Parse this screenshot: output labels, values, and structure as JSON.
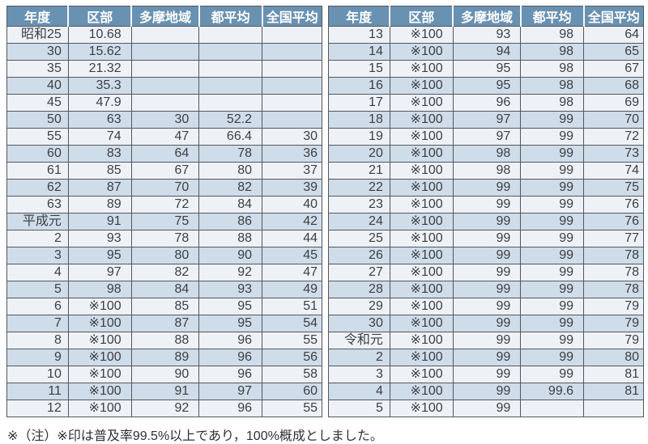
{
  "columns": [
    "年度",
    "区部",
    "多摩地域",
    "都平均",
    "全国平均"
  ],
  "left_table": {
    "rows": [
      [
        "昭和25",
        "10.68",
        "",
        "",
        ""
      ],
      [
        "30",
        "15.62",
        "",
        "",
        ""
      ],
      [
        "35",
        "21.32",
        "",
        "",
        ""
      ],
      [
        "40",
        "35.3",
        "",
        "",
        ""
      ],
      [
        "45",
        "47.9",
        "",
        "",
        ""
      ],
      [
        "50",
        "63",
        "30",
        "52.2",
        ""
      ],
      [
        "55",
        "74",
        "47",
        "66.4",
        "30"
      ],
      [
        "60",
        "83",
        "64",
        "78",
        "36"
      ],
      [
        "61",
        "85",
        "67",
        "80",
        "37"
      ],
      [
        "62",
        "87",
        "70",
        "82",
        "39"
      ],
      [
        "63",
        "89",
        "72",
        "84",
        "40"
      ],
      [
        "平成元",
        "91",
        "75",
        "86",
        "42"
      ],
      [
        "2",
        "93",
        "78",
        "88",
        "44"
      ],
      [
        "3",
        "95",
        "80",
        "90",
        "45"
      ],
      [
        "4",
        "97",
        "82",
        "92",
        "47"
      ],
      [
        "5",
        "98",
        "84",
        "93",
        "49"
      ],
      [
        "6",
        "※100",
        "85",
        "95",
        "51"
      ],
      [
        "7",
        "※100",
        "87",
        "95",
        "54"
      ],
      [
        "8",
        "※100",
        "88",
        "96",
        "55"
      ],
      [
        "9",
        "※100",
        "89",
        "96",
        "56"
      ],
      [
        "10",
        "※100",
        "90",
        "96",
        "58"
      ],
      [
        "11",
        "※100",
        "91",
        "97",
        "60"
      ],
      [
        "12",
        "※100",
        "92",
        "96",
        "55"
      ]
    ]
  },
  "right_table": {
    "rows": [
      [
        "13",
        "※100",
        "93",
        "98",
        "64"
      ],
      [
        "14",
        "※100",
        "94",
        "98",
        "65"
      ],
      [
        "15",
        "※100",
        "95",
        "98",
        "67"
      ],
      [
        "16",
        "※100",
        "95",
        "98",
        "68"
      ],
      [
        "17",
        "※100",
        "96",
        "98",
        "69"
      ],
      [
        "18",
        "※100",
        "97",
        "99",
        "70"
      ],
      [
        "19",
        "※100",
        "97",
        "99",
        "72"
      ],
      [
        "20",
        "※100",
        "98",
        "99",
        "73"
      ],
      [
        "21",
        "※100",
        "98",
        "99",
        "74"
      ],
      [
        "22",
        "※100",
        "99",
        "99",
        "75"
      ],
      [
        "23",
        "※100",
        "99",
        "99",
        "76"
      ],
      [
        "24",
        "※100",
        "99",
        "99",
        "76"
      ],
      [
        "25",
        "※100",
        "99",
        "99",
        "77"
      ],
      [
        "26",
        "※100",
        "99",
        "99",
        "78"
      ],
      [
        "27",
        "※100",
        "99",
        "99",
        "78"
      ],
      [
        "28",
        "※100",
        "99",
        "99",
        "78"
      ],
      [
        "29",
        "※100",
        "99",
        "99",
        "79"
      ],
      [
        "30",
        "※100",
        "99",
        "99",
        "79"
      ],
      [
        "令和元",
        "※100",
        "99",
        "99",
        "79"
      ],
      [
        "2",
        "※100",
        "99",
        "99",
        "80"
      ],
      [
        "3",
        "※100",
        "99",
        "99",
        "81"
      ],
      [
        "4",
        "※100",
        "99",
        "99.6",
        "81"
      ],
      [
        "5",
        "※100",
        "99",
        "",
        ""
      ]
    ]
  },
  "note": "※（注）※印は普及率99.5%以上であり，100%概成としました。",
  "colors": {
    "header_bg": "#6991b1",
    "header_text": "#ffffff",
    "row_light": "#eef2f7",
    "row_blue": "#cfdce9",
    "grid_color": "#54585c",
    "text_color": "#3c3f42",
    "note_color": "#2e3134"
  }
}
